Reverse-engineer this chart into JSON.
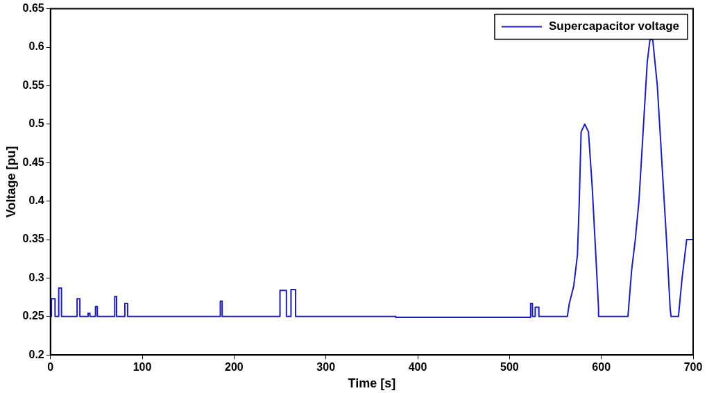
{
  "chart_data": {
    "type": "line",
    "xlabel": "Time [s]",
    "ylabel": "Voltage [pu]",
    "xlim": [
      0,
      700
    ],
    "xticks": [
      0,
      100,
      200,
      300,
      400,
      500,
      600,
      700
    ],
    "ylim": [
      0.2,
      0.65
    ],
    "yticks": [
      0.2,
      0.25,
      0.3,
      0.35,
      0.4,
      0.45,
      0.5,
      0.55,
      0.6,
      0.65
    ],
    "grid": false,
    "legend": "top right",
    "marker": "none",
    "line_style": "solid",
    "series": [
      {
        "name": "Supercapacitor voltage",
        "color": "#1c1cb8",
        "x": [
          0,
          1,
          1,
          5,
          5,
          9,
          9,
          12,
          12,
          29,
          29,
          32,
          32,
          41,
          41,
          43,
          43,
          49,
          49,
          51,
          51,
          70,
          70,
          72,
          72,
          81,
          81,
          84,
          84,
          185,
          185,
          187,
          187,
          250,
          250,
          257,
          257,
          262,
          262,
          267,
          267,
          376,
          376,
          523,
          523,
          525,
          525,
          528,
          528,
          532,
          532,
          563,
          565,
          570,
          574,
          576,
          578,
          582,
          586,
          590,
          594,
          597,
          597,
          629,
          633,
          637,
          641,
          646,
          650,
          653,
          656,
          661,
          666,
          671,
          675,
          676,
          684,
          688,
          691,
          693,
          700
        ],
        "values": [
          0.25,
          0.25,
          0.273,
          0.273,
          0.25,
          0.25,
          0.287,
          0.287,
          0.25,
          0.25,
          0.273,
          0.273,
          0.25,
          0.25,
          0.254,
          0.254,
          0.25,
          0.25,
          0.263,
          0.263,
          0.25,
          0.25,
          0.276,
          0.276,
          0.25,
          0.25,
          0.267,
          0.267,
          0.25,
          0.25,
          0.27,
          0.27,
          0.25,
          0.25,
          0.284,
          0.284,
          0.25,
          0.25,
          0.285,
          0.285,
          0.25,
          0.25,
          0.249,
          0.249,
          0.267,
          0.267,
          0.25,
          0.25,
          0.262,
          0.262,
          0.25,
          0.25,
          0.266,
          0.29,
          0.33,
          0.4,
          0.49,
          0.5,
          0.49,
          0.42,
          0.33,
          0.26,
          0.25,
          0.25,
          0.31,
          0.35,
          0.4,
          0.5,
          0.58,
          0.61,
          0.61,
          0.55,
          0.45,
          0.35,
          0.26,
          0.25,
          0.25,
          0.3,
          0.33,
          0.35,
          0.35
        ]
      }
    ]
  }
}
